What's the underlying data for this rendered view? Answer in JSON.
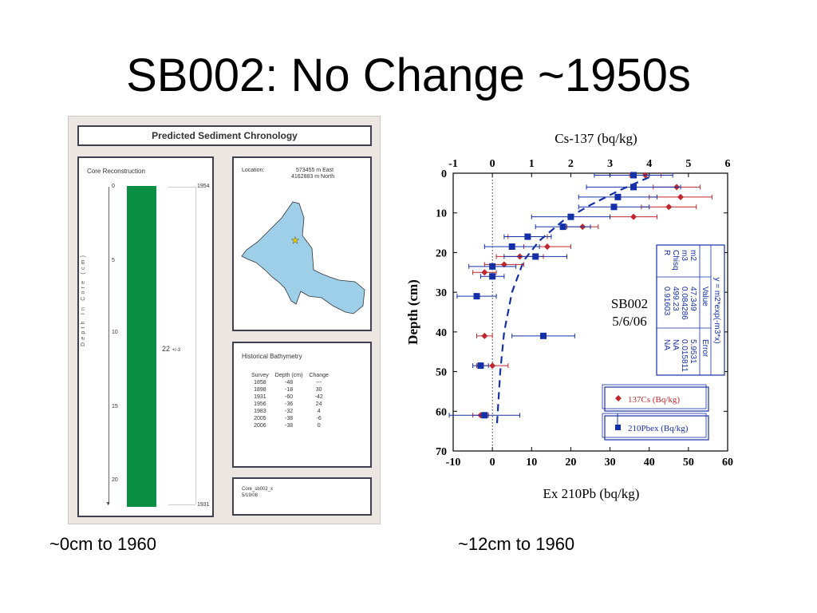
{
  "slide": {
    "title": "SB002: No Change ~1950s",
    "caption_left": "~0cm to 1960",
    "caption_right": "~12cm to 1960"
  },
  "panel": {
    "title": "Predicted Sediment Chronology",
    "core": {
      "heading": "Core Reconstruction",
      "depth_ticks": [
        "0",
        "5",
        "10",
        "15",
        "20"
      ],
      "axis_label": "Depth In Core (cm)",
      "top_year": "1954",
      "bottom_year": "1931",
      "rate_value": "22",
      "rate_error": "+/-3"
    },
    "location": {
      "label": "Location:",
      "east": "573455 m East",
      "north": "4162883 m North"
    },
    "bathymetry": {
      "heading": "Historical Bathymetry",
      "columns": [
        "Survey",
        "Depth (cm)",
        "Change"
      ],
      "rows": [
        [
          "1858",
          "-48",
          "---"
        ],
        [
          "1898",
          "-18",
          "30"
        ],
        [
          "1931",
          "-60",
          "-42"
        ],
        [
          "1956",
          "-36",
          "24"
        ],
        [
          "1983",
          "-32",
          "4"
        ],
        [
          "2005",
          "-38",
          "-6"
        ],
        [
          "2006",
          "-38",
          "0"
        ]
      ]
    },
    "file": {
      "name": "Core_sb002_x",
      "date": "5/19/08"
    },
    "colors": {
      "core_bar": "#0a8f44",
      "map_fill": "#9ecfe8",
      "frame": "#3f3f50"
    }
  },
  "chart_data": {
    "type": "scatter",
    "title": "Cs-137 (bq/kg)",
    "xlabel": "Ex 210Pb (bq/kg)",
    "ylabel": "Depth (cm)",
    "annotation": [
      "SB002",
      "5/6/06"
    ],
    "x_bottom_ticks": [
      "-10",
      "0",
      "10",
      "20",
      "30",
      "40",
      "50",
      "60"
    ],
    "x_top_ticks": [
      "-1",
      "0",
      "1",
      "2",
      "3",
      "4",
      "5",
      "6"
    ],
    "y_ticks": [
      "0",
      "10",
      "20",
      "30",
      "40",
      "50",
      "60",
      "70"
    ],
    "xlim_bottom": [
      -10,
      60
    ],
    "xlim_top": [
      -1,
      6
    ],
    "ylim": [
      0,
      70
    ],
    "y_inverted": true,
    "series": [
      {
        "name": "137Cs (Bq/kg)",
        "axis": "top",
        "color": "#c0282d",
        "marker": "diamond",
        "points": [
          {
            "x": 3.9,
            "y": 0.5,
            "err": 0.4
          },
          {
            "x": 4.7,
            "y": 3.5,
            "err": 0.6
          },
          {
            "x": 4.8,
            "y": 6.0,
            "err": 0.8
          },
          {
            "x": 4.5,
            "y": 8.5,
            "err": 0.7
          },
          {
            "x": 3.6,
            "y": 11.0,
            "err": 0.6
          },
          {
            "x": 2.3,
            "y": 13.5,
            "err": 0.4
          },
          {
            "x": 0.9,
            "y": 16.0,
            "err": 0.5
          },
          {
            "x": 1.4,
            "y": 18.5,
            "err": 0.6
          },
          {
            "x": 0.7,
            "y": 21.0,
            "err": 0.6
          },
          {
            "x": 0.3,
            "y": 23.0,
            "err": 0.5
          },
          {
            "x": -0.2,
            "y": 25.0,
            "err": 0.3
          },
          {
            "x": -0.2,
            "y": 41.0,
            "err": 0.2
          },
          {
            "x": 0.0,
            "y": 48.5,
            "err": 0.4
          },
          {
            "x": -0.3,
            "y": 61.0,
            "err": 0.2
          }
        ]
      },
      {
        "name": "210Pbex (Bq/kg)",
        "axis": "bottom",
        "color": "#1430a8",
        "marker": "square",
        "points": [
          {
            "x": 36,
            "y": 0.5,
            "err": 10
          },
          {
            "x": 36,
            "y": 3.5,
            "err": 12
          },
          {
            "x": 32,
            "y": 6.0,
            "err": 10
          },
          {
            "x": 31,
            "y": 8.5,
            "err": 9
          },
          {
            "x": 20,
            "y": 11.0,
            "err": 10
          },
          {
            "x": 18,
            "y": 13.5,
            "err": 7
          },
          {
            "x": 9,
            "y": 16.0,
            "err": 6
          },
          {
            "x": 5,
            "y": 18.5,
            "err": 7
          },
          {
            "x": 11,
            "y": 21.0,
            "err": 8
          },
          {
            "x": 0,
            "y": 23.5,
            "err": 6
          },
          {
            "x": 0,
            "y": 26.0,
            "err": 3
          },
          {
            "x": -4,
            "y": 31.0,
            "err": 5
          },
          {
            "x": 13,
            "y": 41.0,
            "err": 8
          },
          {
            "x": -3,
            "y": 48.5,
            "err": 2
          },
          {
            "x": -2,
            "y": 61.0,
            "err": 9
          }
        ]
      }
    ],
    "fit_curve": {
      "axis": "bottom",
      "color": "#1430a8",
      "points": [
        [
          1.2,
          63
        ],
        [
          2,
          50
        ],
        [
          3,
          40
        ],
        [
          5,
          30
        ],
        [
          8,
          22
        ],
        [
          12,
          17
        ],
        [
          18,
          12
        ],
        [
          25,
          8
        ],
        [
          32,
          4.5
        ],
        [
          40,
          1
        ]
      ]
    },
    "fit_table": {
      "equation": "y = m2*exp(-m3*x)",
      "header": [
        "",
        "Value",
        "Error"
      ],
      "rows": [
        [
          "m2",
          "47.349",
          "5.9531"
        ],
        [
          "m3",
          "0.084286",
          "0.015811"
        ],
        [
          "Chisq",
          "499.23",
          "NA"
        ],
        [
          "R",
          "0.91603",
          "NA"
        ]
      ]
    },
    "legend": [
      "137Cs (Bq/kg)",
      "210Pbex (Bq/kg)"
    ]
  }
}
